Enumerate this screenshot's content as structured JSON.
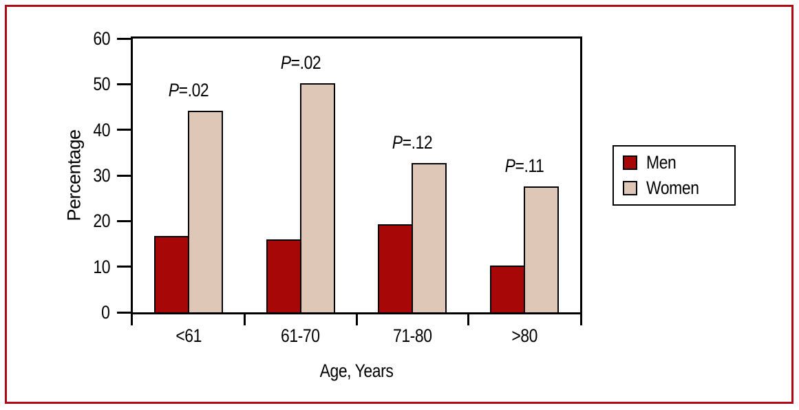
{
  "figure": {
    "background": "#ffffff",
    "frame_color": "#b00915",
    "axis_color": "#000000"
  },
  "chart_data": {
    "type": "bar",
    "title": "",
    "categories": [
      "<61",
      "61-70",
      "71-80",
      ">80"
    ],
    "series": [
      {
        "name": "Men",
        "color": "#a80707",
        "values": [
          16.7,
          16.0,
          19.3,
          10.2
        ]
      },
      {
        "name": "Women",
        "color": "#dfc7b8",
        "values": [
          44.1,
          50.2,
          32.7,
          27.6
        ]
      }
    ],
    "annotations": [
      {
        "text": "P=.02",
        "category_index": 0
      },
      {
        "text": "P=.02",
        "category_index": 1
      },
      {
        "text": "P=.12",
        "category_index": 2
      },
      {
        "text": "P=.11",
        "category_index": 3
      }
    ],
    "xlabel": "Age, Years",
    "ylabel": "Percentage",
    "ylim": [
      0,
      60
    ],
    "yticks": [
      0,
      10,
      20,
      30,
      40,
      50,
      60
    ],
    "grid": false,
    "legend_position": "right",
    "legend_items": [
      "Men",
      "Women"
    ]
  }
}
